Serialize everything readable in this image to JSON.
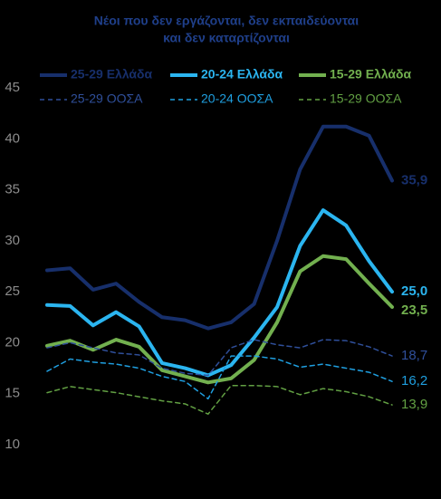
{
  "chart_data": {
    "type": "line",
    "title": "Νέοι που δεν εργάζονται, δεν εκπαιδεύονται",
    "subtitle": "και δεν καταρτίζονται",
    "categories": [
      null,
      null,
      null,
      null,
      null,
      null,
      null,
      null,
      null,
      null,
      null,
      null,
      null,
      null,
      null,
      null
    ],
    "ylim": [
      10,
      45
    ],
    "yticks": [
      10,
      15,
      20,
      25,
      30,
      35,
      40,
      45
    ],
    "series": [
      {
        "name": "25-29 Ελλάδα",
        "color": "#172f6b",
        "dash": false,
        "values": [
          27.1,
          27.3,
          25.2,
          25.8,
          24.0,
          22.5,
          22.2,
          21.4,
          22.0,
          23.8,
          30.0,
          37.0,
          41.2,
          41.2,
          40.3,
          35.9
        ],
        "value_labels": [
          null,
          null,
          null,
          null,
          null,
          null,
          null,
          null,
          null,
          null,
          null,
          null,
          null,
          null,
          null,
          "35,9"
        ]
      },
      {
        "name": "20-24 Ελλάδα",
        "color": "#2bb5f0",
        "dash": false,
        "values": [
          23.7,
          23.6,
          21.7,
          23.0,
          21.6,
          18.0,
          17.5,
          16.8,
          17.8,
          20.5,
          23.5,
          29.5,
          33.0,
          31.5,
          28.0,
          25.0
        ],
        "value_labels": [
          null,
          null,
          null,
          null,
          null,
          null,
          null,
          null,
          null,
          null,
          null,
          null,
          null,
          null,
          null,
          "25,0"
        ]
      },
      {
        "name": "15-29 Ελλάδα",
        "color": "#72b04f",
        "dash": false,
        "values": [
          19.7,
          20.2,
          19.3,
          20.3,
          19.6,
          17.3,
          16.7,
          16.1,
          16.5,
          18.3,
          22.0,
          27.0,
          28.5,
          28.2,
          25.8,
          23.5
        ],
        "value_labels": [
          null,
          null,
          null,
          null,
          null,
          null,
          null,
          null,
          null,
          null,
          null,
          null,
          null,
          null,
          null,
          "23,5"
        ]
      },
      {
        "name": "25-29 ΟΟΣΑ",
        "color": "#2f4f9a",
        "dash": true,
        "values": [
          19.5,
          20.0,
          19.5,
          19.0,
          18.8,
          17.5,
          17.0,
          16.8,
          19.5,
          20.3,
          19.8,
          19.5,
          20.3,
          20.2,
          19.6,
          18.7
        ],
        "value_labels": [
          null,
          null,
          null,
          null,
          null,
          null,
          null,
          null,
          null,
          null,
          null,
          null,
          null,
          null,
          null,
          "18,7"
        ]
      },
      {
        "name": "20-24 ΟΟΣΑ",
        "color": "#1f9fe0",
        "dash": true,
        "values": [
          17.2,
          18.4,
          18.1,
          17.9,
          17.5,
          16.7,
          16.2,
          14.5,
          18.7,
          18.7,
          18.4,
          17.6,
          17.9,
          17.5,
          17.1,
          16.2
        ],
        "value_labels": [
          null,
          null,
          null,
          null,
          null,
          null,
          null,
          null,
          null,
          null,
          null,
          null,
          null,
          null,
          null,
          "16,2"
        ]
      },
      {
        "name": "15-29 ΟΟΣΑ",
        "color": "#62a043",
        "dash": true,
        "values": [
          15.1,
          15.7,
          15.4,
          15.1,
          14.7,
          14.3,
          14.0,
          13.0,
          15.8,
          15.8,
          15.7,
          14.9,
          15.5,
          15.2,
          14.7,
          13.9
        ],
        "value_labels": [
          null,
          null,
          null,
          null,
          null,
          null,
          null,
          null,
          null,
          null,
          null,
          null,
          null,
          null,
          null,
          "13,9"
        ]
      }
    ]
  }
}
